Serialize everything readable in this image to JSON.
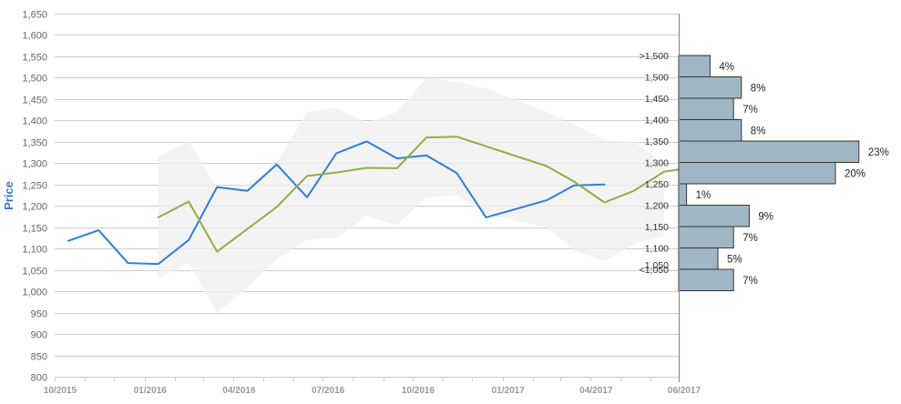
{
  "chart_data": {
    "type": "line",
    "ylabel": "Price",
    "ylim": [
      800,
      1650
    ],
    "y_ticks": [
      "800",
      "850",
      "900",
      "950",
      "1,000",
      "1,050",
      "1,100",
      "1,150",
      "1,200",
      "1,250",
      "1,300",
      "1,350",
      "1,400",
      "1,450",
      "1,500",
      "1,550",
      "1,600",
      "1,650"
    ],
    "x_labels": [
      "10/2015",
      "01/2016",
      "04/2016",
      "07/2016",
      "10/2016",
      "01/2017",
      "04/2017",
      "06/2017"
    ],
    "grid": true,
    "colors": {
      "blue": "#2f7ed8",
      "green": "#8db045",
      "band": "#efefef",
      "bar_fill": "#a1b6c4",
      "bar_stroke": "#333333",
      "tick_text": "#666666",
      "ylabel": "#3c78c8"
    },
    "series": [
      {
        "color": "#2f7ed8",
        "points": [
          {
            "x": "2015-10-15",
            "y": 1118
          },
          {
            "x": "2015-11-15",
            "y": 1143
          },
          {
            "x": "2015-12-15",
            "y": 1066
          },
          {
            "x": "2016-01-15",
            "y": 1064
          },
          {
            "x": "2016-02-15",
            "y": 1120
          },
          {
            "x": "2016-03-15",
            "y": 1244
          },
          {
            "x": "2016-04-15",
            "y": 1235
          },
          {
            "x": "2016-05-15",
            "y": 1297
          },
          {
            "x": "2016-06-15",
            "y": 1220
          },
          {
            "x": "2016-07-15",
            "y": 1323
          },
          {
            "x": "2016-08-15",
            "y": 1351
          },
          {
            "x": "2016-09-15",
            "y": 1311
          },
          {
            "x": "2016-10-15",
            "y": 1318
          },
          {
            "x": "2016-11-15",
            "y": 1277
          },
          {
            "x": "2016-12-15",
            "y": 1173
          },
          {
            "x": "2017-02-15",
            "y": 1213
          },
          {
            "x": "2017-03-15",
            "y": 1248
          },
          {
            "x": "2017-04-15",
            "y": 1250
          }
        ]
      },
      {
        "color": "#8db045",
        "points": [
          {
            "x": "2016-01-15",
            "y": 1173
          },
          {
            "x": "2016-02-15",
            "y": 1210
          },
          {
            "x": "2016-03-15",
            "y": 1093
          },
          {
            "x": "2016-05-15",
            "y": 1197
          },
          {
            "x": "2016-06-15",
            "y": 1270
          },
          {
            "x": "2016-07-15",
            "y": 1278
          },
          {
            "x": "2016-08-15",
            "y": 1289
          },
          {
            "x": "2016-09-15",
            "y": 1288
          },
          {
            "x": "2016-10-15",
            "y": 1360
          },
          {
            "x": "2016-11-15",
            "y": 1362
          },
          {
            "x": "2017-02-15",
            "y": 1293
          },
          {
            "x": "2017-03-15",
            "y": 1257
          },
          {
            "x": "2017-04-15",
            "y": 1208
          },
          {
            "x": "2017-05-15",
            "y": 1235
          },
          {
            "x": "2017-06-15",
            "y": 1280
          },
          {
            "x": "2017-06-30",
            "y": 1285
          }
        ]
      }
    ],
    "range_band": {
      "upper": [
        {
          "x": "2016-01-15",
          "y": 1316
        },
        {
          "x": "2016-02-15",
          "y": 1352
        },
        {
          "x": "2016-03-15",
          "y": 1242
        },
        {
          "x": "2016-04-15",
          "y": 1250
        },
        {
          "x": "2016-05-15",
          "y": 1300
        },
        {
          "x": "2016-06-15",
          "y": 1420
        },
        {
          "x": "2016-07-15",
          "y": 1430
        },
        {
          "x": "2016-08-15",
          "y": 1395
        },
        {
          "x": "2016-09-15",
          "y": 1420
        },
        {
          "x": "2016-10-15",
          "y": 1500
        },
        {
          "x": "2016-11-15",
          "y": 1490
        },
        {
          "x": "2016-12-15",
          "y": 1475
        },
        {
          "x": "2017-02-15",
          "y": 1420
        },
        {
          "x": "2017-03-15",
          "y": 1390
        },
        {
          "x": "2017-04-15",
          "y": 1355
        },
        {
          "x": "2017-05-15",
          "y": 1350
        },
        {
          "x": "2017-06-15",
          "y": 1300
        }
      ],
      "lower": [
        {
          "x": "2016-01-15",
          "y": 1030
        },
        {
          "x": "2016-02-15",
          "y": 1068
        },
        {
          "x": "2016-03-15",
          "y": 950
        },
        {
          "x": "2016-04-15",
          "y": 1008
        },
        {
          "x": "2016-05-15",
          "y": 1075
        },
        {
          "x": "2016-06-15",
          "y": 1120
        },
        {
          "x": "2016-07-15",
          "y": 1125
        },
        {
          "x": "2016-08-15",
          "y": 1175
        },
        {
          "x": "2016-09-15",
          "y": 1155
        },
        {
          "x": "2016-10-15",
          "y": 1220
        },
        {
          "x": "2016-11-15",
          "y": 1225
        },
        {
          "x": "2016-12-15",
          "y": 1180
        },
        {
          "x": "2017-02-15",
          "y": 1150
        },
        {
          "x": "2017-03-15",
          "y": 1095
        },
        {
          "x": "2017-04-15",
          "y": 1070
        },
        {
          "x": "2017-05-15",
          "y": 1110
        },
        {
          "x": "2017-06-15",
          "y": 1130
        }
      ]
    },
    "distribution": [
      {
        "label": ">1,500",
        "value": 4,
        "text": "4%"
      },
      {
        "label": "1,500",
        "value": 8,
        "text": "8%"
      },
      {
        "label": "1,450",
        "value": 7,
        "text": "7%"
      },
      {
        "label": "1,400",
        "value": 8,
        "text": "8%"
      },
      {
        "label": "1,350",
        "value": 23,
        "text": "23%"
      },
      {
        "label": "1,300",
        "value": 20,
        "text": "20%"
      },
      {
        "label": "1,250",
        "value": 1,
        "text": "1%"
      },
      {
        "label": "1,200",
        "value": 9,
        "text": "9%"
      },
      {
        "label": "1,150",
        "value": 7,
        "text": "7%"
      },
      {
        "label": "1,100",
        "value": 5,
        "text": "5%"
      },
      {
        "label": "<1,050",
        "value": 7,
        "text": "7%"
      }
    ],
    "distribution_extra_labels": [
      "1,050"
    ]
  }
}
